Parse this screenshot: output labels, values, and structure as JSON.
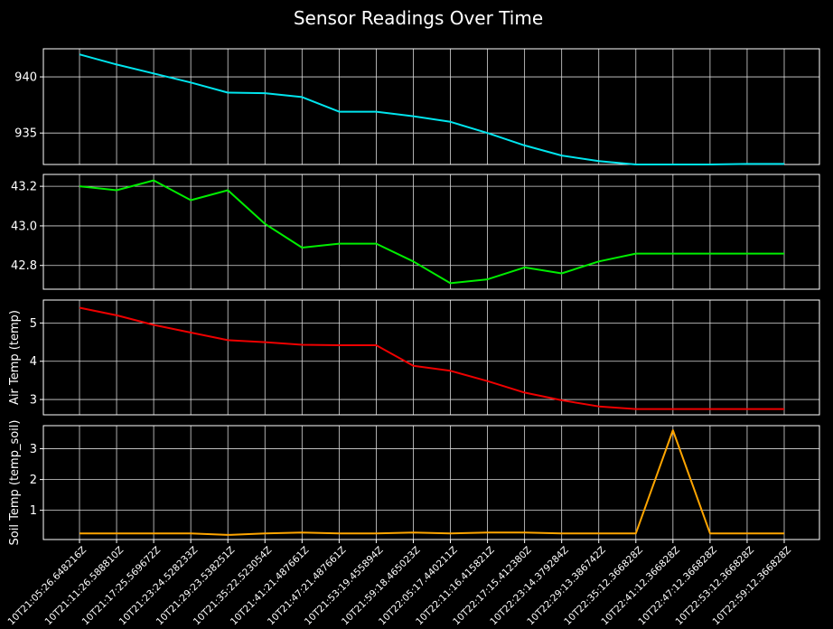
{
  "chart_data": {
    "type": "line",
    "title": "Sensor Readings Over Time",
    "x": [
      "10T21:05:26.648216Z",
      "10T21:11:26.588810Z",
      "10T21:17:25.569672Z",
      "10T21:23:24.528233Z",
      "10T21:29:23.538251Z",
      "10T21:35:22.523054Z",
      "10T21:41:21.487661Z",
      "10T21:47:21.487661Z",
      "10T21:53:19.455894Z",
      "10T21:59:18.465023Z",
      "10T22:05:17.440211Z",
      "10T22:11:16.415821Z",
      "10T22:17:15.412380Z",
      "10T22:23:14.379284Z",
      "10T22:29:13.386742Z",
      "10T22:35:12.366828Z",
      "10T22:41:12.366828Z",
      "10T22:47:12.366828Z",
      "10T22:53:12.366828Z",
      "10T22:59:12.366828Z"
    ],
    "grid": true,
    "panels": [
      {
        "ylabel": "",
        "color": "#00e5ee",
        "ylim": [
          932.2,
          942.5
        ],
        "yticks": [
          935,
          940
        ],
        "tick_labels": [
          "935",
          "940"
        ],
        "values": [
          942.0,
          941.1,
          940.3,
          939.5,
          938.6,
          938.55,
          938.2,
          936.9,
          936.9,
          936.5,
          936.0,
          935.0,
          933.9,
          933.0,
          932.5,
          932.2,
          932.2,
          932.2,
          932.25,
          932.25
        ]
      },
      {
        "ylabel": "",
        "color": "#00ee00",
        "ylim": [
          42.68,
          43.26
        ],
        "yticks": [
          42.8,
          43.0,
          43.2
        ],
        "tick_labels": [
          "42.8",
          "43.0",
          "43.2"
        ],
        "values": [
          43.2,
          43.18,
          43.23,
          43.13,
          43.18,
          43.01,
          42.89,
          42.91,
          42.91,
          42.82,
          42.71,
          42.73,
          42.79,
          42.76,
          42.82,
          42.86,
          42.86,
          42.86,
          42.86,
          42.86
        ]
      },
      {
        "ylabel": "Air Temp (temp)",
        "color": "#ee0000",
        "ylim": [
          2.6,
          5.6
        ],
        "yticks": [
          3,
          4,
          5
        ],
        "tick_labels": [
          "3",
          "4",
          "5"
        ],
        "values": [
          5.4,
          5.2,
          4.95,
          4.75,
          4.55,
          4.5,
          4.43,
          4.42,
          4.42,
          3.88,
          3.75,
          3.48,
          3.18,
          2.98,
          2.82,
          2.75,
          2.75,
          2.75,
          2.75,
          2.75
        ]
      },
      {
        "ylabel": "Soil Temp (temp_soil)",
        "color": "#ffa500",
        "ylim": [
          0.05,
          3.75
        ],
        "yticks": [
          1,
          2,
          3
        ],
        "tick_labels": [
          "1",
          "2",
          "3"
        ],
        "values": [
          0.25,
          0.25,
          0.25,
          0.25,
          0.2,
          0.25,
          0.28,
          0.25,
          0.25,
          0.28,
          0.25,
          0.28,
          0.28,
          0.25,
          0.25,
          0.25,
          3.6,
          0.25,
          0.25,
          0.25
        ]
      }
    ]
  }
}
